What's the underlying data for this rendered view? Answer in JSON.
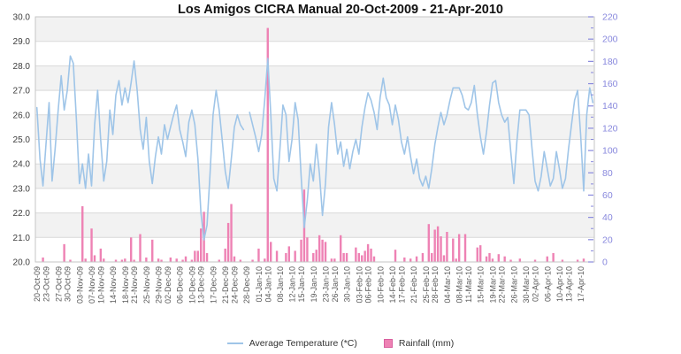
{
  "title": "Los Amigos CICRA Manual  20-Oct-2009 - 21-Apr-2010",
  "legend": {
    "items": [
      {
        "label": "Average Temperature (*C)",
        "swatch": "line",
        "color": "#9fc5e8"
      },
      {
        "label": "Rainfall (mm)",
        "swatch": "square",
        "color": "#ee82b4",
        "border_color": "#d9609f"
      }
    ]
  },
  "colors": {
    "temperature_line": "#9fc5e8",
    "rainfall_bar": "#ee82b4",
    "left_axis_text": "#3d3d3d",
    "right_axis_text": "#8888dd",
    "x_axis_text": "#595959",
    "band_gray": "#f2f2f2",
    "band_white": "#ffffff",
    "gridline": "#d9d9d9",
    "plot_border": "#c6c6c6"
  },
  "chart_data": {
    "type": "line+bar",
    "title": "Los Amigos CICRA Manual  20-Oct-2009 - 21-Apr-2010",
    "x_count": 184,
    "x_range_text": "20-Oct-2009 to 21-Apr-2010, daily",
    "left_axis": {
      "min": 20,
      "max": 30,
      "step": 1,
      "tick_labels_top_to_bottom": [
        "30.0",
        "29.0",
        "28.0",
        "27.0",
        "26.0",
        "25.0",
        "24.0",
        "23.0",
        "22.0",
        "21.0",
        "20.0"
      ]
    },
    "right_axis": {
      "min": 0,
      "max": 220,
      "step": 20,
      "tick_labels_top_to_bottom": [
        "220",
        "200",
        "180",
        "160",
        "140",
        "120",
        "100",
        "80",
        "60",
        "40",
        "20",
        "0"
      ]
    },
    "x_tick_positions": [
      0,
      3,
      7,
      10,
      14,
      18,
      21,
      25,
      29,
      32,
      36,
      40,
      43,
      47,
      51,
      54,
      58,
      62,
      65,
      69,
      73,
      76,
      80,
      84,
      87,
      91,
      95,
      98,
      102,
      106,
      109,
      113,
      117,
      120,
      124,
      128,
      131,
      135,
      139,
      142,
      146,
      150,
      153,
      157,
      161,
      164,
      168,
      172,
      175,
      179
    ],
    "x_tick_labels": [
      "20-Oct-09",
      "23-Oct-09",
      "27-Oct-09",
      "30-Oct-09",
      "03-Nov-09",
      "07-Nov-09",
      "10-Nov-09",
      "14-Nov-09",
      "18-Nov-09",
      "21-Nov-09",
      "25-Nov-09",
      "29-Nov-09",
      "02-Dec-09",
      "06-Dec-09",
      "10-Dec-09",
      "13-Dec-09",
      "17-Dec-09",
      "21-Dec-09",
      "24-Dec-09",
      "28-Dec-09",
      "01-Jan-10",
      "04-Jan-10",
      "08-Jan-10",
      "12-Jan-10",
      "15-Jan-10",
      "19-Jan-10",
      "23-Jan-10",
      "26-Jan-10",
      "30-Jan-10",
      "03-Feb-10",
      "06-Feb-10",
      "10-Feb-10",
      "14-Feb-10",
      "17-Feb-10",
      "21-Feb-10",
      "25-Feb-10",
      "28-Feb-10",
      "04-Mar-10",
      "08-Mar-10",
      "11-Mar-10",
      "15-Mar-10",
      "19-Mar-10",
      "22-Mar-10",
      "26-Mar-10",
      "30-Mar-10",
      "02-Apr-10",
      "06-Apr-10",
      "10-Apr-10",
      "13-Apr-10",
      "17-Apr-10"
    ],
    "series": [
      {
        "name": "Average Temperature (*C)",
        "type": "line",
        "axis": "left",
        "values": [
          26.3,
          24.2,
          23.1,
          24.8,
          26.5,
          23.3,
          24.6,
          26.2,
          27.6,
          26.2,
          27.0,
          28.4,
          28.1,
          25.8,
          23.2,
          24.0,
          23.0,
          24.4,
          23.1,
          25.6,
          27.0,
          25.0,
          23.3,
          24.1,
          26.2,
          25.2,
          26.8,
          27.4,
          26.4,
          27.1,
          26.5,
          27.3,
          28.2,
          27.0,
          25.4,
          24.6,
          25.9,
          24.1,
          23.2,
          24.3,
          25.1,
          24.4,
          25.6,
          25.0,
          25.5,
          26.0,
          26.4,
          25.4,
          24.9,
          24.3,
          25.7,
          26.2,
          25.6,
          24.2,
          22.0,
          20.9,
          21.5,
          23.6,
          26.0,
          27.0,
          26.2,
          25.0,
          23.7,
          23.0,
          24.2,
          25.5,
          26.0,
          25.6,
          25.4,
          null,
          26.1,
          25.6,
          25.1,
          24.5,
          25.2,
          26.6,
          28.3,
          26.0,
          23.4,
          22.9,
          24.6,
          26.4,
          26.0,
          24.1,
          25.0,
          26.5,
          25.8,
          23.5,
          21.4,
          22.5,
          24.0,
          23.3,
          24.8,
          23.6,
          21.9,
          23.2,
          25.5,
          26.5,
          25.6,
          24.4,
          24.9,
          23.9,
          24.6,
          23.8,
          24.5,
          25.0,
          24.4,
          25.5,
          26.3,
          26.9,
          26.6,
          26.1,
          25.4,
          26.7,
          27.5,
          26.7,
          26.4,
          25.6,
          26.4,
          25.8,
          24.9,
          24.4,
          25.1,
          24.3,
          23.6,
          24.2,
          23.4,
          23.1,
          23.5,
          23.0,
          23.8,
          24.8,
          25.5,
          26.1,
          25.6,
          26.0,
          26.6,
          27.1,
          27.1,
          27.1,
          26.8,
          26.3,
          26.2,
          26.5,
          27.2,
          26.0,
          25.1,
          24.4,
          25.3,
          26.4,
          27.3,
          27.4,
          26.5,
          26.0,
          25.7,
          25.9,
          24.5,
          23.2,
          24.9,
          26.2,
          26.2,
          26.2,
          26.0,
          24.6,
          23.3,
          22.9,
          23.5,
          24.5,
          23.8,
          23.1,
          23.4,
          24.5,
          23.8,
          23.0,
          23.4,
          24.6,
          25.6,
          26.6,
          27.0,
          25.2,
          22.9,
          26.0,
          27.1,
          26.5
        ]
      },
      {
        "name": "Rainfall (mm)",
        "type": "bar",
        "axis": "right",
        "values": [
          0,
          0,
          4,
          0,
          0,
          0,
          0,
          0,
          0,
          16,
          0,
          2,
          0,
          0,
          0,
          50,
          3,
          0,
          30,
          6,
          0,
          12,
          3,
          0,
          0,
          0,
          2,
          0,
          2,
          3,
          0,
          22,
          2,
          0,
          25,
          0,
          4,
          0,
          20,
          0,
          3,
          2,
          0,
          0,
          4,
          0,
          3,
          0,
          2,
          5,
          0,
          2,
          10,
          10,
          30,
          45,
          8,
          0,
          0,
          0,
          2,
          0,
          12,
          35,
          52,
          5,
          0,
          2,
          0,
          0,
          0,
          2,
          0,
          12,
          0,
          3,
          210,
          18,
          0,
          10,
          0,
          0,
          8,
          14,
          0,
          10,
          0,
          20,
          65,
          22,
          0,
          8,
          11,
          24,
          20,
          18,
          0,
          3,
          3,
          0,
          24,
          8,
          8,
          0,
          0,
          13,
          8,
          6,
          10,
          16,
          12,
          5,
          0,
          0,
          0,
          0,
          0,
          0,
          11,
          0,
          0,
          4,
          0,
          3,
          0,
          5,
          0,
          8,
          0,
          34,
          8,
          29,
          32,
          23,
          6,
          27,
          0,
          21,
          3,
          25,
          0,
          25,
          0,
          0,
          0,
          13,
          15,
          0,
          5,
          8,
          3,
          0,
          7,
          0,
          5,
          0,
          2,
          0,
          0,
          3,
          0,
          0,
          0,
          0,
          2,
          0,
          0,
          0,
          5,
          0,
          8,
          0,
          0,
          2,
          0,
          0,
          0,
          0,
          2,
          0,
          3,
          0,
          0,
          0
        ]
      }
    ]
  }
}
